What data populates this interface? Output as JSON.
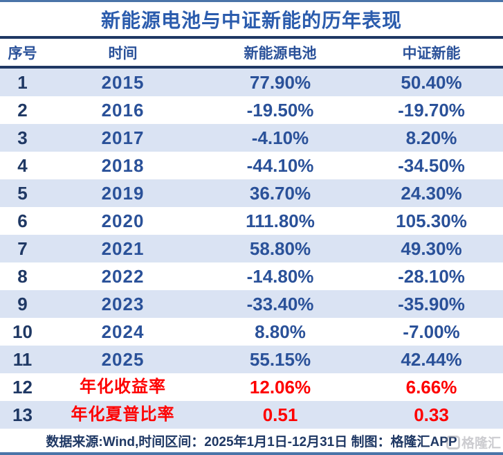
{
  "title": "新能源电池与中证新能的历年表现",
  "table": {
    "headers": [
      "序号",
      "时间",
      "新能源电池",
      "中证新能"
    ],
    "rows": [
      {
        "index": "1",
        "period": "2015",
        "battery": "77.90%",
        "csi": "50.40%",
        "summary": false
      },
      {
        "index": "2",
        "period": "2016",
        "battery": "-19.50%",
        "csi": "-19.70%",
        "summary": false
      },
      {
        "index": "3",
        "period": "2017",
        "battery": "-4.10%",
        "csi": "8.20%",
        "summary": false
      },
      {
        "index": "4",
        "period": "2018",
        "battery": "-44.10%",
        "csi": "-34.50%",
        "summary": false
      },
      {
        "index": "5",
        "period": "2019",
        "battery": "36.70%",
        "csi": "24.30%",
        "summary": false
      },
      {
        "index": "6",
        "period": "2020",
        "battery": "111.80%",
        "csi": "105.30%",
        "summary": false
      },
      {
        "index": "7",
        "period": "2021",
        "battery": "58.80%",
        "csi": "49.30%",
        "summary": false
      },
      {
        "index": "8",
        "period": "2022",
        "battery": "-14.80%",
        "csi": "-28.10%",
        "summary": false
      },
      {
        "index": "9",
        "period": "2023",
        "battery": "-33.40%",
        "csi": "-35.90%",
        "summary": false
      },
      {
        "index": "10",
        "period": "2024",
        "battery": "8.80%",
        "csi": "-7.00%",
        "summary": false
      },
      {
        "index": "11",
        "period": "2025",
        "battery": "55.15%",
        "csi": "42.44%",
        "summary": false
      },
      {
        "index": "12",
        "period": "年化收益率",
        "battery": "12.06%",
        "csi": "6.66%",
        "summary": true
      },
      {
        "index": "13",
        "period": "年化夏普比率",
        "battery": "0.51",
        "csi": "0.33",
        "summary": true
      }
    ]
  },
  "footer": {
    "source_note": "数据来源:Wind,时间区间：2025年1月1日-12月31日 制图：格隆汇APP"
  },
  "watermark_text": "格隆汇",
  "colors": {
    "title_blue": "#2b5cad",
    "value_blue": "#2a5199",
    "index_navy": "#1f3864",
    "rule_navy": "#1f3864",
    "band": "#dae3f3",
    "summary_red": "#fe0000",
    "border_blue": "#4a74a8"
  },
  "chart_data": {
    "type": "table",
    "title": "新能源电池与中证新能的历年表现",
    "columns": [
      "序号",
      "时间",
      "新能源电池",
      "中证新能"
    ],
    "categories": [
      "2015",
      "2016",
      "2017",
      "2018",
      "2019",
      "2020",
      "2021",
      "2022",
      "2023",
      "2024",
      "2025"
    ],
    "series": [
      {
        "name": "新能源电池",
        "values_pct": [
          77.9,
          -19.5,
          -4.1,
          -44.1,
          36.7,
          111.8,
          58.8,
          -14.8,
          -33.4,
          8.8,
          55.15
        ],
        "annualized_return_pct": 12.06,
        "annualized_sharpe": 0.51
      },
      {
        "name": "中证新能",
        "values_pct": [
          50.4,
          -19.7,
          8.2,
          -34.5,
          24.3,
          105.3,
          49.3,
          -28.1,
          -35.9,
          -7.0,
          42.44
        ],
        "annualized_return_pct": 6.66,
        "annualized_sharpe": 0.33
      }
    ],
    "summary_row_labels": [
      "年化收益率",
      "年化夏普比率"
    ],
    "source_note": "数据来源:Wind,时间区间：2025年1月1日-12月31日 制图：格隆汇APP"
  }
}
